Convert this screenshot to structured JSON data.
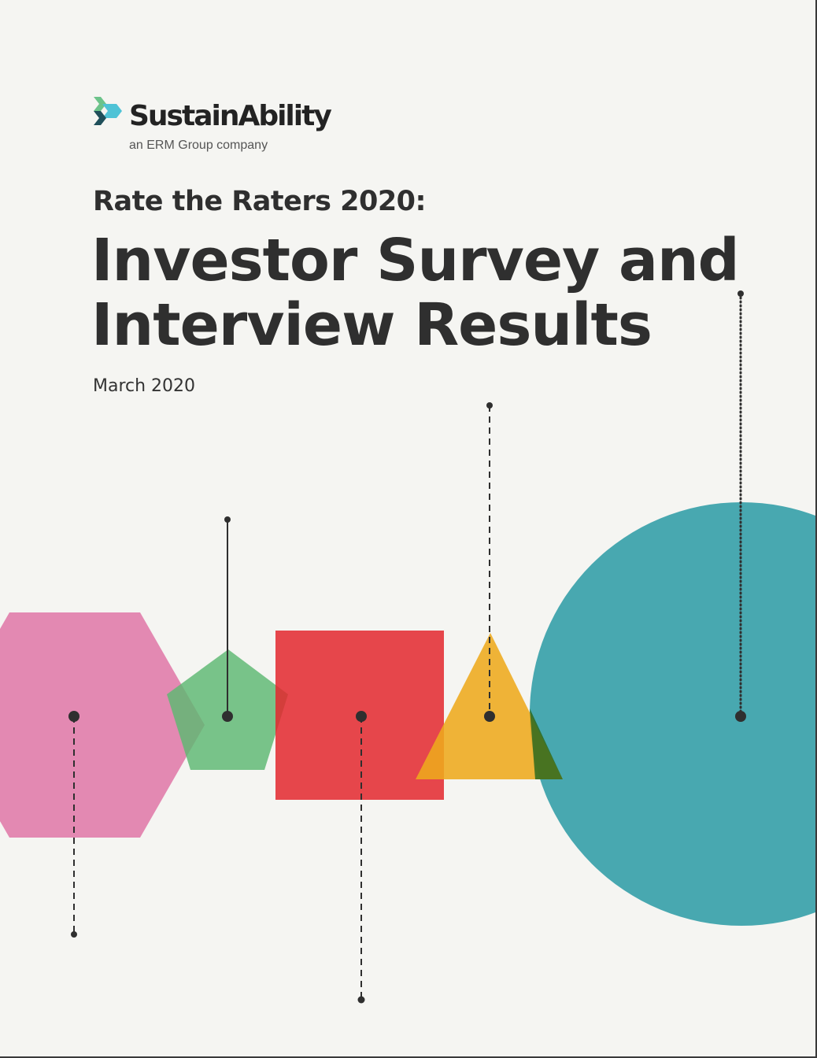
{
  "logo": {
    "name": "SustainAbility",
    "tagline": "an ERM Group company",
    "colors": [
      "#6cc38a",
      "#4fc3d6",
      "#1f4f5a"
    ]
  },
  "cover": {
    "subtitle": "Rate the Raters 2020:",
    "title_lines": [
      "Investor Survey and",
      "Interview Results"
    ],
    "date": "March 2020"
  },
  "illustration": {
    "shapes": [
      {
        "name": "hexagon",
        "color": "#e07aa8"
      },
      {
        "name": "pentagon",
        "color": "#6cc38a"
      },
      {
        "name": "square",
        "color": "#e3363d"
      },
      {
        "name": "triangle",
        "color": "#eeaa28"
      },
      {
        "name": "circle",
        "color": "#3aa1ab"
      }
    ],
    "line_color": "#2f2f2f"
  }
}
